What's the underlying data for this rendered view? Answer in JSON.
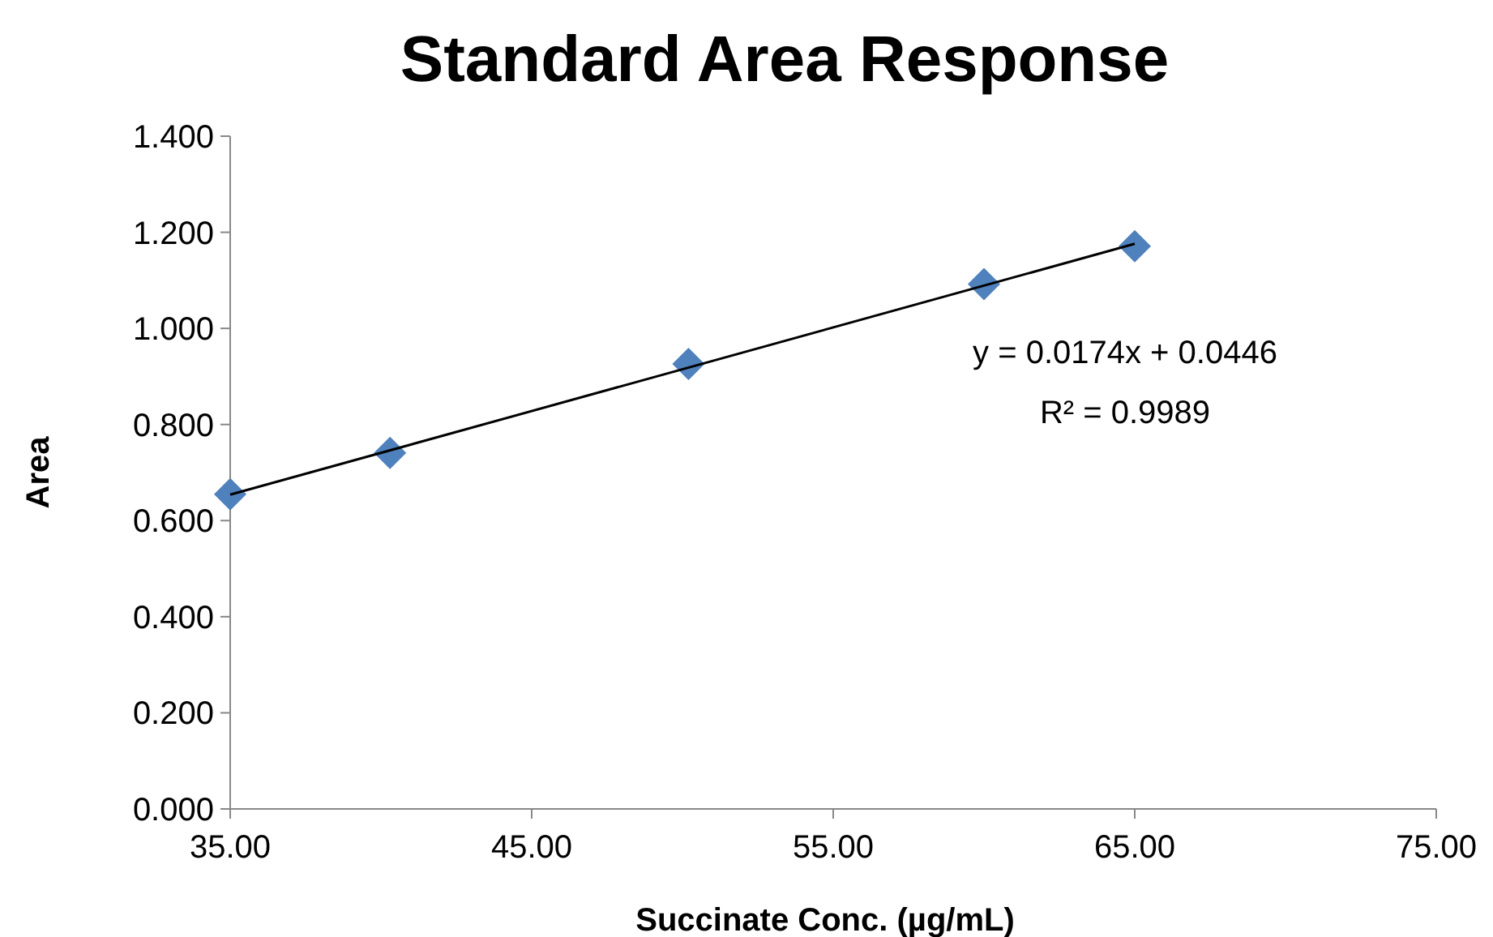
{
  "chart_data": {
    "type": "scatter",
    "title": "Standard Area Response",
    "xlabel": "Succinate Conc. (µg/mL)",
    "ylabel": "Area",
    "series": [
      {
        "color": "#4f81bd",
        "marker": "diamond",
        "x": [
          35,
          40.3,
          50.2,
          60,
          65
        ],
        "values": [
          0.655,
          0.741,
          0.926,
          1.092,
          1.171
        ]
      },
      {
        "type": "line",
        "color": "#000000",
        "marker": "none",
        "x": [
          35,
          65
        ],
        "values": [
          0.654,
          1.176
        ]
      }
    ],
    "annotations": [
      "y = 0.0174x + 0.0446",
      "R² = 0.9989"
    ],
    "xlim": [
      35,
      75
    ],
    "ylim": [
      0,
      1.4
    ],
    "xticks": [
      {
        "value": 35,
        "label": "35.00"
      },
      {
        "value": 45,
        "label": "45.00"
      },
      {
        "value": 55,
        "label": "55.00"
      },
      {
        "value": 65,
        "label": "65.00"
      },
      {
        "value": 75,
        "label": "75.00"
      }
    ],
    "yticks": [
      {
        "value": 0,
        "label": "0.000"
      },
      {
        "value": 0.2,
        "label": "0.200"
      },
      {
        "value": 0.4,
        "label": "0.400"
      },
      {
        "value": 0.6,
        "label": "0.600"
      },
      {
        "value": 0.8,
        "label": "0.800"
      },
      {
        "value": 1,
        "label": "1.000"
      },
      {
        "value": 1.2,
        "label": "1.200"
      },
      {
        "value": 1.4,
        "label": "1.400"
      }
    ]
  }
}
